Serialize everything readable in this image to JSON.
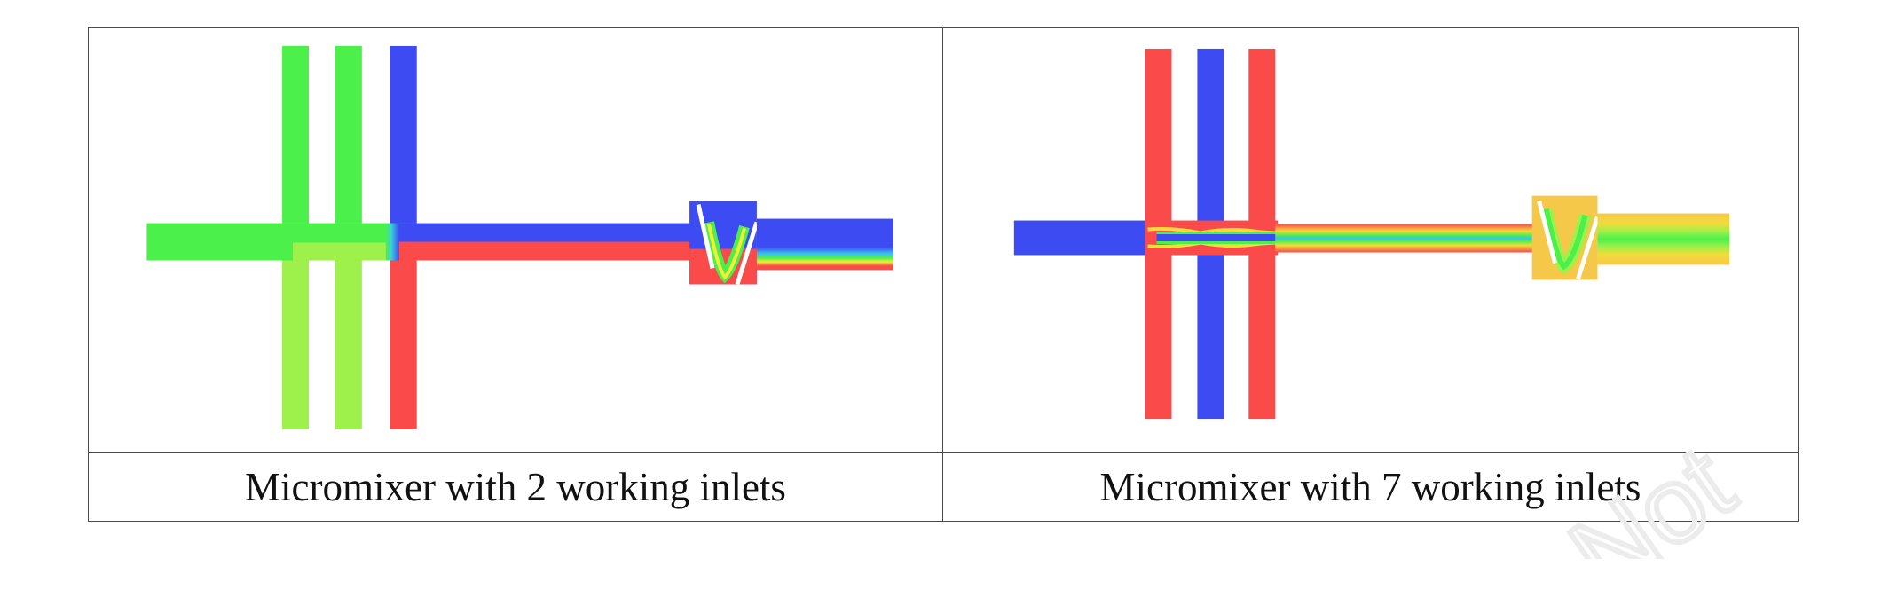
{
  "panels": [
    {
      "caption": "Micromixer with 2 working inlets",
      "channel_colors": {
        "upper_inlets": [
          "#4cf04a",
          "#4cf04a",
          "#3d4cf2"
        ],
        "lower_inlets": [
          "#9ef04a",
          "#9ef04a",
          "#fb4a4a"
        ],
        "left_inlet": "#4cf04a"
      }
    },
    {
      "caption": "Micromixer with 7 working inlets",
      "channel_colors": {
        "upper_inlets": [
          "#fb4a4a",
          "#3d4cf2",
          "#fb4a4a"
        ],
        "lower_inlets": [
          "#fb4a4a",
          "#3d4cf2",
          "#fb4a4a"
        ],
        "left_inlet": "#3d4cf2"
      }
    }
  ],
  "watermark_text": "Not"
}
